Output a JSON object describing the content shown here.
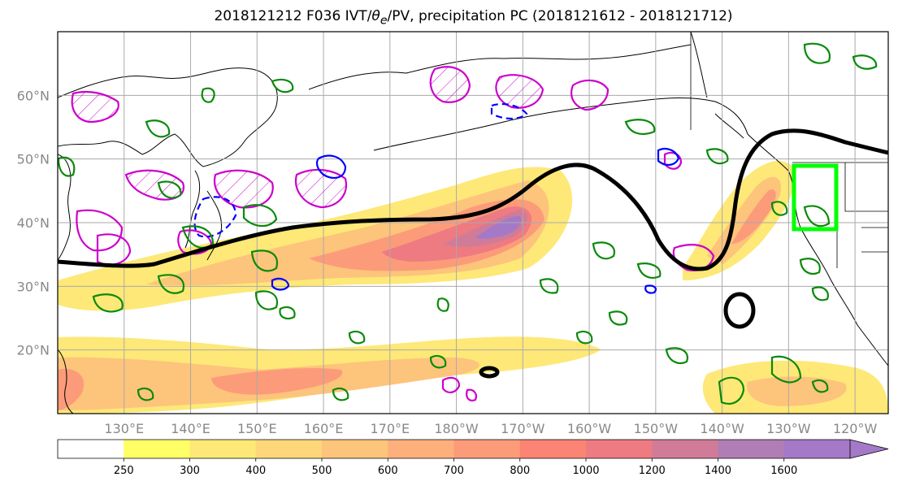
{
  "title": {
    "prefix": "2018121212 F036 IVT/",
    "theta": "θ",
    "theta_sub": "e",
    "suffix": "/PV, precipitation PC (2018121612 - 2018121712)"
  },
  "chart_data": {
    "type": "heatmap",
    "projection": "cylindrical",
    "lon_range": [
      120,
      245
    ],
    "lat_range": [
      10,
      70
    ],
    "lat_ticks": [
      "20°N",
      "30°N",
      "40°N",
      "50°N",
      "60°N"
    ],
    "lat_values": [
      20,
      30,
      40,
      50,
      60
    ],
    "lon_ticks": [
      "130°E",
      "140°E",
      "150°E",
      "160°E",
      "170°E",
      "180°W",
      "170°W",
      "160°W",
      "150°W",
      "140°W",
      "130°W",
      "120°W"
    ],
    "lon_values": [
      130,
      140,
      150,
      160,
      170,
      180,
      190,
      200,
      210,
      220,
      230,
      240
    ],
    "grid": true,
    "colorbar": {
      "levels": [
        "250",
        "300",
        "400",
        "500",
        "600",
        "700",
        "800",
        "1000",
        "1200",
        "1400",
        "1600"
      ],
      "colors": [
        "#ffffff",
        "#ffff66",
        "#fee877",
        "#fed77a",
        "#fdc47c",
        "#fdb07c",
        "#fc9b79",
        "#fb8474",
        "#ee7a82",
        "#d07c98",
        "#b07eb4",
        "#a47ac8"
      ],
      "extend": "max"
    },
    "colors": {
      "pv_contour": "#0a8a0a",
      "theta_contour": "#cc00cc",
      "negative_contour": "#0000ff",
      "jet_contour": "#000000",
      "target_box": "#00ff00",
      "land_border": "#000000"
    }
  }
}
